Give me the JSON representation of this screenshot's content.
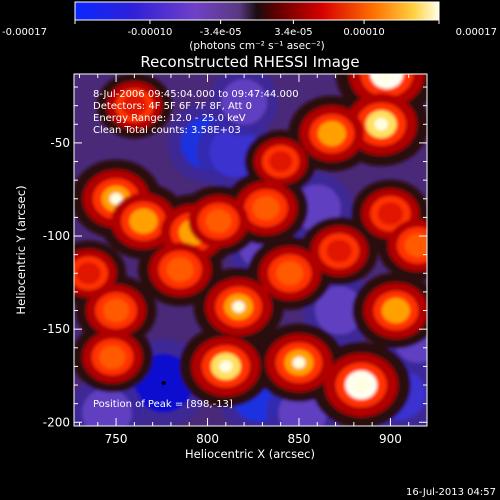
{
  "colorbar": {
    "ticks": [
      "-0.00017",
      "-0.00010",
      "-3.4e-05",
      "3.4e-05",
      "0.00010",
      "0.00017"
    ],
    "unit_label": "(photons cm⁻² s⁻¹ asec⁻²)",
    "range": [
      -0.00017,
      0.00017
    ]
  },
  "chart_data": {
    "type": "heatmap",
    "title": "Reconstructed RHESSI Image",
    "xlabel": "Heliocentric X (arcsec)",
    "ylabel": "Heliocentric Y (arcsec)",
    "xlim": [
      727,
      920
    ],
    "ylim": [
      -202,
      -13
    ],
    "x_ticks": [
      750,
      800,
      850,
      900
    ],
    "y_ticks": [
      -50,
      -100,
      -150,
      -200
    ],
    "annotations": [
      "8-Jul-2006 09:45:04.000 to 09:47:44.000",
      "Detectors: 4F 5F 6F 7F 8F, Att 0",
      "Energy Range: 12.0 - 25.0 keV",
      "Clean     Total counts: 3.58E+03"
    ],
    "peak_label": "Position of Peak = [898,-13]",
    "peak_position": [
      898,
      -13
    ],
    "minimum_marker": [
      776,
      -179
    ],
    "bright_sources": [
      {
        "x": 898,
        "y": -13,
        "value": 0.00017
      },
      {
        "x": 895,
        "y": -40,
        "value": 0.00015
      },
      {
        "x": 868,
        "y": -45,
        "value": 0.00012
      },
      {
        "x": 750,
        "y": -80,
        "value": 0.00013
      },
      {
        "x": 832,
        "y": -85,
        "value": 0.00011
      },
      {
        "x": 900,
        "y": -88,
        "value": 9e-05
      },
      {
        "x": 765,
        "y": -92,
        "value": 0.00012
      },
      {
        "x": 792,
        "y": -98,
        "value": 0.00012
      },
      {
        "x": 806,
        "y": -92,
        "value": 0.0001
      },
      {
        "x": 872,
        "y": -108,
        "value": 9e-05
      },
      {
        "x": 915,
        "y": -105,
        "value": 0.0001
      },
      {
        "x": 785,
        "y": -118,
        "value": 0.00011
      },
      {
        "x": 845,
        "y": -120,
        "value": 0.00011
      },
      {
        "x": 817,
        "y": -138,
        "value": 0.00013
      },
      {
        "x": 903,
        "y": -140,
        "value": 0.00012
      },
      {
        "x": 750,
        "y": -140,
        "value": 0.0001
      },
      {
        "x": 850,
        "y": -168,
        "value": 0.00013
      },
      {
        "x": 810,
        "y": -170,
        "value": 0.00014
      },
      {
        "x": 884,
        "y": -180,
        "value": 0.00016
      },
      {
        "x": 748,
        "y": -165,
        "value": 0.0001
      },
      {
        "x": 735,
        "y": -120,
        "value": 8e-05
      },
      {
        "x": 760,
        "y": -30,
        "value": 8e-05
      },
      {
        "x": 840,
        "y": -60,
        "value": 7e-05
      }
    ],
    "dark_regions": [
      {
        "x": 776,
        "y": -179,
        "value": -0.00017
      },
      {
        "x": 800,
        "y": -50,
        "value": -0.00013
      },
      {
        "x": 815,
        "y": -55,
        "value": -0.00011
      },
      {
        "x": 828,
        "y": -185,
        "value": -0.00014
      },
      {
        "x": 905,
        "y": -185,
        "value": -0.00012
      },
      {
        "x": 915,
        "y": -155,
        "value": -9e-05
      },
      {
        "x": 872,
        "y": -140,
        "value": -9e-05
      },
      {
        "x": 830,
        "y": -105,
        "value": -8e-05
      },
      {
        "x": 860,
        "y": -85,
        "value": -8e-05
      },
      {
        "x": 820,
        "y": -28,
        "value": -7e-05
      },
      {
        "x": 745,
        "y": -195,
        "value": -0.0001
      },
      {
        "x": 852,
        "y": -195,
        "value": -9e-05
      }
    ]
  },
  "timestamp": "16-Jul-2013 04:57"
}
